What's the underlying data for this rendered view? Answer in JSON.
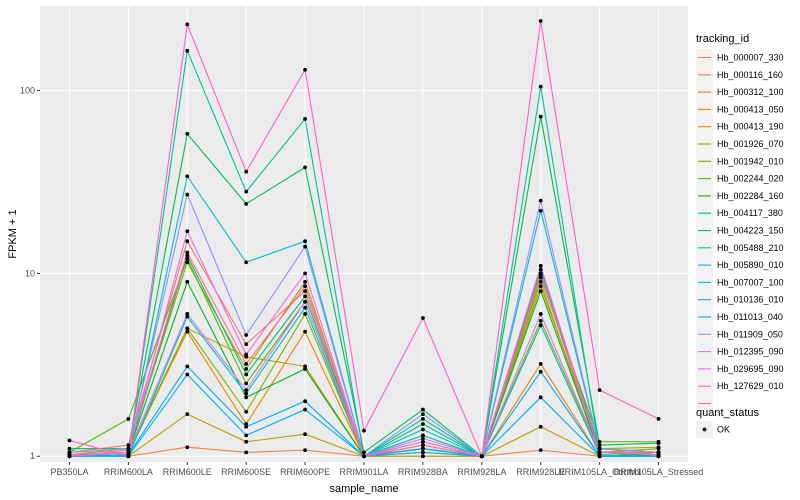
{
  "chart_data": {
    "type": "line",
    "xlabel": "sample_name",
    "ylabel": "FPKM + 1",
    "y_scale": "log10",
    "y_ticks": [
      1,
      10,
      100
    ],
    "ylim": [
      0.93,
      290
    ],
    "grid": true,
    "legend_position": "right",
    "categories": [
      "PB350LA",
      "RRIM600LA",
      "RRIM600LE",
      "RRIM600SE",
      "RRIM600PE",
      "RRIM901LA",
      "RRIM928BA",
      "RRIM928LA",
      "RRIM928LE",
      "RRIM105LA_Control",
      "RRIM105LA_Stressed"
    ],
    "category_labels": [
      "PB350LA",
      "RRIM600LA",
      "RRIM600LE",
      "RRIM600SE",
      "RRIM600PE",
      "RRIM901LA",
      "RRIM928BA",
      "RRIM928LA",
      "RRIM928LE",
      "RRIM105LA_Control",
      "RRIM105LA_Stressed"
    ],
    "legend_title": "tracking_id",
    "shape_legend_title": "quant_status",
    "shape_legend_items": [
      "OK"
    ],
    "series": [
      {
        "name": "Hb_000007_330",
        "color": "#F8766D",
        "values": [
          1.05,
          1.15,
          15.0,
          4.1,
          8.0,
          1.0,
          1.1,
          1.0,
          10.0,
          1.05,
          1.02
        ]
      },
      {
        "name": "Hb_000116_160",
        "color": "#EE8044",
        "values": [
          1.0,
          1.0,
          1.12,
          1.05,
          1.08,
          1.0,
          1.0,
          1.0,
          1.08,
          1.0,
          1.0
        ]
      },
      {
        "name": "Hb_000312_100",
        "color": "#E08A00",
        "values": [
          1.02,
          1.05,
          4.8,
          1.5,
          4.8,
          1.0,
          1.05,
          1.0,
          3.2,
          1.0,
          1.0
        ]
      },
      {
        "name": "Hb_000413_050",
        "color": "#CF9400",
        "values": [
          1.0,
          1.02,
          5.0,
          3.5,
          3.1,
          1.0,
          1.1,
          1.0,
          9.0,
          1.0,
          1.05
        ]
      },
      {
        "name": "Hb_000413_190",
        "color": "#BB9D00",
        "values": [
          1.0,
          1.0,
          1.7,
          1.2,
          1.32,
          1.0,
          1.0,
          1.0,
          1.45,
          1.0,
          1.0
        ]
      },
      {
        "name": "Hb_001926_070",
        "color": "#A3A500",
        "values": [
          1.02,
          1.1,
          11.5,
          3.0,
          9.0,
          1.0,
          1.15,
          1.0,
          8.5,
          1.1,
          1.12
        ]
      },
      {
        "name": "Hb_001942_010",
        "color": "#85AD00",
        "values": [
          1.0,
          1.05,
          5.0,
          1.75,
          6.0,
          1.0,
          1.2,
          1.0,
          5.5,
          1.05,
          1.1
        ]
      },
      {
        "name": "Hb_002244_020",
        "color": "#5BB300",
        "values": [
          1.05,
          1.6,
          12.0,
          2.5,
          7.0,
          1.0,
          1.3,
          1.0,
          9.5,
          1.2,
          1.2
        ]
      },
      {
        "name": "Hb_002284_160",
        "color": "#00B81F",
        "values": [
          1.0,
          1.05,
          9.0,
          2.1,
          3.0,
          1.0,
          1.1,
          1.0,
          8.0,
          1.05,
          1.0
        ]
      },
      {
        "name": "Hb_004117_380",
        "color": "#00BC56",
        "values": [
          1.1,
          1.1,
          58.0,
          24.0,
          38.0,
          1.05,
          1.8,
          1.0,
          72.0,
          1.15,
          1.18
        ]
      },
      {
        "name": "Hb_004223_150",
        "color": "#00BF7D",
        "values": [
          1.0,
          1.05,
          12.5,
          2.8,
          7.5,
          1.0,
          1.5,
          1.0,
          10.5,
          1.1,
          1.05
        ]
      },
      {
        "name": "Hb_005488_210",
        "color": "#00C19C",
        "values": [
          1.0,
          1.02,
          165.0,
          28.0,
          70.0,
          1.0,
          1.6,
          1.0,
          105.0,
          1.05,
          1.02
        ]
      },
      {
        "name": "Hb_005890_010",
        "color": "#00C0B8",
        "values": [
          1.0,
          1.0,
          5.8,
          2.2,
          6.5,
          1.0,
          1.3,
          1.0,
          5.2,
          1.02,
          1.0
        ]
      },
      {
        "name": "Hb_007007_100",
        "color": "#00BCD3",
        "values": [
          1.0,
          1.05,
          34.0,
          11.5,
          15.0,
          1.0,
          1.4,
          1.0,
          22.0,
          1.1,
          1.05
        ]
      },
      {
        "name": "Hb_010136_010",
        "color": "#00B4EF",
        "values": [
          1.0,
          1.0,
          2.8,
          1.3,
          1.8,
          1.0,
          1.05,
          1.0,
          2.1,
          1.0,
          1.0
        ]
      },
      {
        "name": "Hb_011013_040",
        "color": "#00A9FF",
        "values": [
          1.0,
          1.02,
          3.1,
          1.45,
          2.0,
          1.0,
          1.1,
          1.0,
          2.9,
          1.0,
          1.0
        ]
      },
      {
        "name": "Hb_011909_050",
        "color": "#8B93FF",
        "values": [
          1.05,
          1.1,
          27.0,
          4.6,
          14.0,
          1.0,
          1.7,
          1.0,
          25.0,
          1.1,
          1.05
        ]
      },
      {
        "name": "Hb_012395_090",
        "color": "#C77CFF",
        "values": [
          1.0,
          1.05,
          6.0,
          2.3,
          7.0,
          1.0,
          1.2,
          1.0,
          6.0,
          1.05,
          1.02
        ]
      },
      {
        "name": "Hb_029695_090",
        "color": "#E76BF3",
        "values": [
          1.02,
          1.05,
          17.0,
          3.6,
          10.0,
          1.0,
          1.25,
          1.0,
          11.0,
          1.05,
          1.05
        ]
      },
      {
        "name": "Hb_127629_010",
        "color": "#FF61C3",
        "values": [
          1.22,
          1.0,
          230.0,
          36.0,
          130.0,
          1.38,
          5.7,
          1.0,
          240.0,
          2.3,
          1.6
        ]
      },
      {
        "name": "",
        "color": "#FF6C91",
        "values": [
          1.0,
          1.08,
          13.0,
          3.2,
          8.5,
          1.0,
          1.15,
          1.0,
          9.8,
          1.05,
          1.05
        ]
      }
    ]
  }
}
